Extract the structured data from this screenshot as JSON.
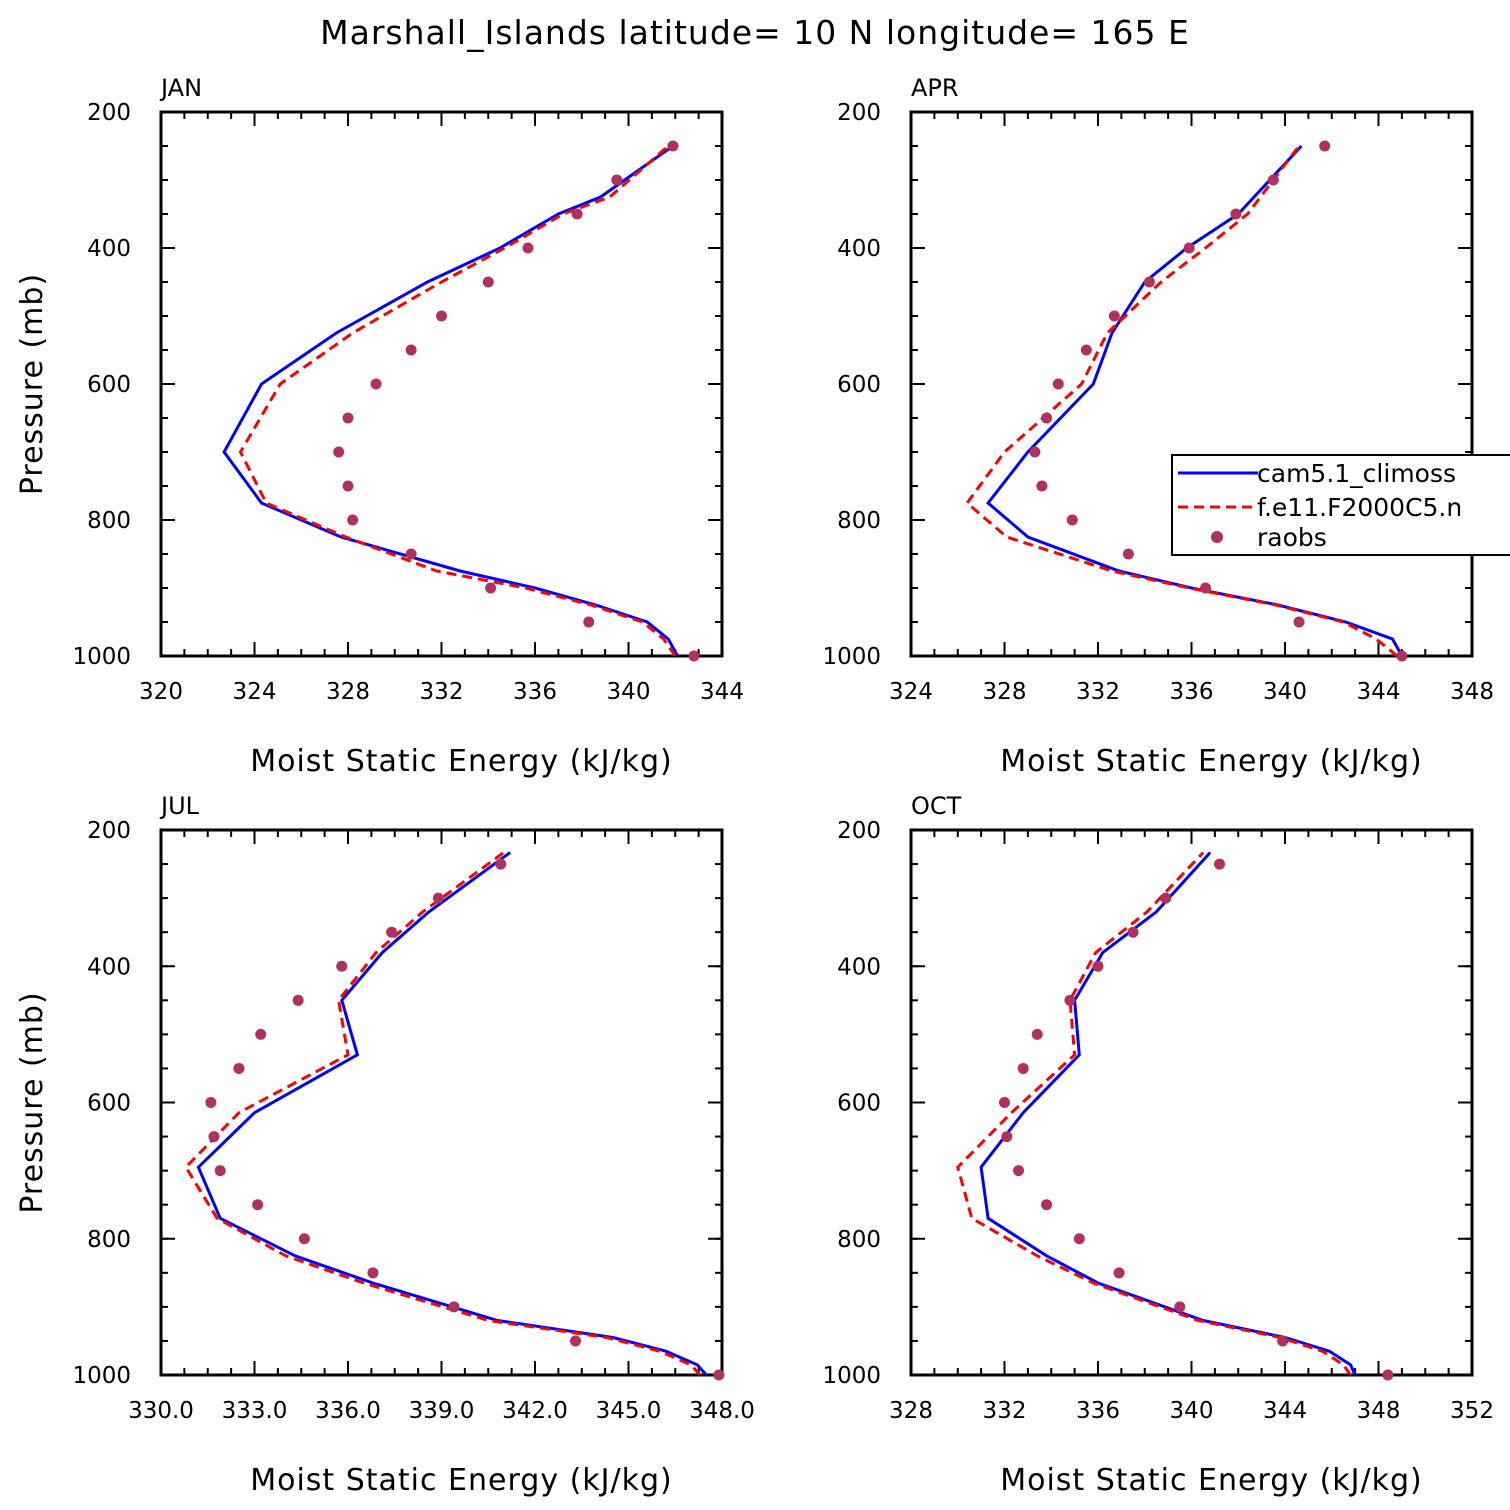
{
  "title": "Marshall_Islands  latitude= 10 N longitude= 165 E",
  "colors": {
    "model1": "#0000ff",
    "model2": "#ff0000",
    "obs": "#b03060"
  },
  "legend": {
    "placement": "right-middle of APR panel",
    "entries": [
      "cam5.1_climoss",
      "f.e11.F2000C5.n",
      "raobs"
    ]
  },
  "chart_data": [
    {
      "type": "line",
      "panel": "JAN",
      "title": "JAN",
      "xlabel": "Moist Static Energy (kJ/kg)",
      "ylabel": "Pressure (mb)",
      "xlim": [
        320,
        344
      ],
      "ylim": [
        1000,
        200
      ],
      "y_reversed": true,
      "xticks": [
        "320",
        "324",
        "328",
        "332",
        "336",
        "340",
        "344"
      ],
      "yticks": [
        "200",
        "400",
        "600",
        "800",
        "1000"
      ],
      "series": [
        {
          "name": "cam5.1_climoss",
          "style": "solid",
          "x": [
            342.1,
            341.7,
            340.8,
            338.6,
            336.0,
            332.8,
            327.7,
            324.3,
            322.7,
            324.3,
            327.5,
            331.4,
            334.5,
            337.0,
            338.8,
            341.9
          ],
          "y": [
            1000,
            975,
            950,
            925,
            900,
            875,
            825,
            775,
            700,
            600,
            525,
            450,
            400,
            350,
            325,
            250
          ]
        },
        {
          "name": "f.e11.F2000C5.n",
          "style": "dashed",
          "x": [
            342.0,
            341.5,
            340.6,
            338.4,
            335.6,
            331.8,
            327.9,
            324.5,
            323.4,
            325.1,
            328.2,
            332.0,
            334.7,
            337.2,
            339.2,
            341.7
          ],
          "y": [
            1000,
            975,
            950,
            925,
            900,
            875,
            825,
            775,
            700,
            600,
            525,
            450,
            400,
            350,
            325,
            250
          ]
        },
        {
          "name": "raobs",
          "style": "dots",
          "x": [
            342.8,
            338.3,
            334.1,
            330.7,
            328.2,
            328.0,
            327.6,
            328.0,
            329.2,
            330.7,
            332.0,
            334.0,
            335.7,
            337.8,
            339.5,
            341.9
          ],
          "y": [
            1000,
            950,
            900,
            850,
            800,
            750,
            700,
            650,
            600,
            550,
            500,
            450,
            400,
            350,
            300,
            250
          ]
        }
      ]
    },
    {
      "type": "line",
      "panel": "APR",
      "title": "APR",
      "xlabel": "Moist Static Energy (kJ/kg)",
      "ylabel": "",
      "xlim": [
        324,
        348
      ],
      "ylim": [
        1000,
        200
      ],
      "y_reversed": true,
      "xticks": [
        "324",
        "328",
        "332",
        "336",
        "340",
        "344",
        "348"
      ],
      "yticks": [
        "200",
        "400",
        "600",
        "800",
        "1000"
      ],
      "series": [
        {
          "name": "cam5.1_climoss",
          "style": "solid",
          "x": [
            345.0,
            344.6,
            342.6,
            339.7,
            336.0,
            332.9,
            329.0,
            327.3,
            329.0,
            331.8,
            332.6,
            334.0,
            335.8,
            338.0,
            340.7
          ],
          "y": [
            1000,
            975,
            950,
            925,
            900,
            875,
            825,
            775,
            700,
            600,
            525,
            450,
            400,
            350,
            250
          ]
        },
        {
          "name": "f.e11.F2000C5.n",
          "style": "dashed",
          "x": [
            344.8,
            343.9,
            342.5,
            339.6,
            335.9,
            332.6,
            328.1,
            326.4,
            328.0,
            331.3,
            332.4,
            334.7,
            336.6,
            338.4,
            340.6
          ],
          "y": [
            1000,
            975,
            950,
            925,
            900,
            875,
            825,
            775,
            700,
            600,
            525,
            450,
            400,
            350,
            250
          ]
        },
        {
          "name": "raobs",
          "style": "dots",
          "x": [
            345.0,
            340.6,
            336.6,
            333.3,
            330.9,
            329.6,
            329.3,
            329.8,
            330.3,
            331.5,
            332.7,
            334.2,
            335.9,
            337.9,
            339.5,
            341.7
          ],
          "y": [
            1000,
            950,
            900,
            850,
            800,
            750,
            700,
            650,
            600,
            550,
            500,
            450,
            400,
            350,
            300,
            250
          ]
        }
      ]
    },
    {
      "type": "line",
      "panel": "JUL",
      "title": "JUL",
      "xlabel": "Moist Static Energy (kJ/kg)",
      "ylabel": "Pressure (mb)",
      "xlim": [
        330,
        348
      ],
      "ylim": [
        1000,
        200
      ],
      "y_reversed": true,
      "xticks": [
        "330.0",
        "333.0",
        "336.0",
        "339.0",
        "342.0",
        "345.0",
        "348.0"
      ],
      "yticks": [
        "200",
        "400",
        "600",
        "800",
        "1000"
      ],
      "series": [
        {
          "name": "cam5.1_climoss",
          "style": "solid",
          "x": [
            347.5,
            347.2,
            346.2,
            344.5,
            340.8,
            336.8,
            334.3,
            331.9,
            331.2,
            333.0,
            336.3,
            335.8,
            337.1,
            338.6,
            341.2
          ],
          "y": [
            1000,
            985,
            965,
            945,
            920,
            865,
            825,
            770,
            695,
            615,
            530,
            450,
            380,
            320,
            233
          ]
        },
        {
          "name": "f.e11.F2000C5.n",
          "style": "dashed",
          "x": [
            347.3,
            347.0,
            346.0,
            344.3,
            340.5,
            336.5,
            334.0,
            331.8,
            330.8,
            332.5,
            336.0,
            335.7,
            336.9,
            338.4,
            341.0
          ],
          "y": [
            1000,
            985,
            965,
            945,
            920,
            865,
            825,
            770,
            695,
            615,
            530,
            450,
            380,
            320,
            233
          ]
        },
        {
          "name": "raobs",
          "style": "dots",
          "x": [
            347.9,
            343.3,
            339.4,
            336.8,
            334.6,
            333.1,
            331.9,
            331.7,
            331.6,
            332.5,
            333.2,
            334.4,
            335.8,
            337.4,
            338.9,
            340.9
          ],
          "y": [
            1000,
            950,
            900,
            850,
            800,
            750,
            700,
            650,
            600,
            550,
            500,
            450,
            400,
            350,
            300,
            250
          ]
        }
      ]
    },
    {
      "type": "line",
      "panel": "OCT",
      "title": "OCT",
      "xlabel": "Moist Static Energy (kJ/kg)",
      "ylabel": "",
      "xlim": [
        328,
        352
      ],
      "ylim": [
        1000,
        200
      ],
      "y_reversed": true,
      "xticks": [
        "328",
        "332",
        "336",
        "340",
        "344",
        "348",
        "352"
      ],
      "yticks": [
        "200",
        "400",
        "600",
        "800",
        "1000"
      ],
      "series": [
        {
          "name": "cam5.1_climoss",
          "style": "solid",
          "x": [
            347.0,
            346.8,
            345.9,
            344.0,
            340.5,
            336.0,
            333.8,
            331.3,
            331.0,
            332.8,
            335.2,
            335.0,
            336.2,
            338.5,
            340.8
          ],
          "y": [
            1000,
            985,
            965,
            945,
            920,
            865,
            825,
            770,
            695,
            615,
            530,
            450,
            380,
            320,
            233
          ]
        },
        {
          "name": "f.e11.F2000C5.n",
          "style": "dashed",
          "x": [
            346.8,
            346.5,
            345.6,
            343.8,
            340.3,
            335.8,
            333.4,
            330.6,
            330.0,
            332.3,
            335.0,
            334.8,
            335.9,
            338.1,
            340.5
          ],
          "y": [
            1000,
            985,
            965,
            945,
            920,
            865,
            825,
            770,
            695,
            615,
            530,
            450,
            380,
            320,
            233
          ]
        },
        {
          "name": "raobs",
          "style": "dots",
          "x": [
            348.4,
            343.9,
            339.5,
            336.9,
            335.2,
            333.8,
            332.6,
            332.1,
            332.0,
            332.8,
            333.4,
            334.8,
            336.0,
            337.5,
            338.9,
            341.2
          ],
          "y": [
            1000,
            950,
            900,
            850,
            800,
            750,
            700,
            650,
            600,
            550,
            500,
            450,
            400,
            350,
            300,
            250
          ]
        }
      ]
    }
  ]
}
